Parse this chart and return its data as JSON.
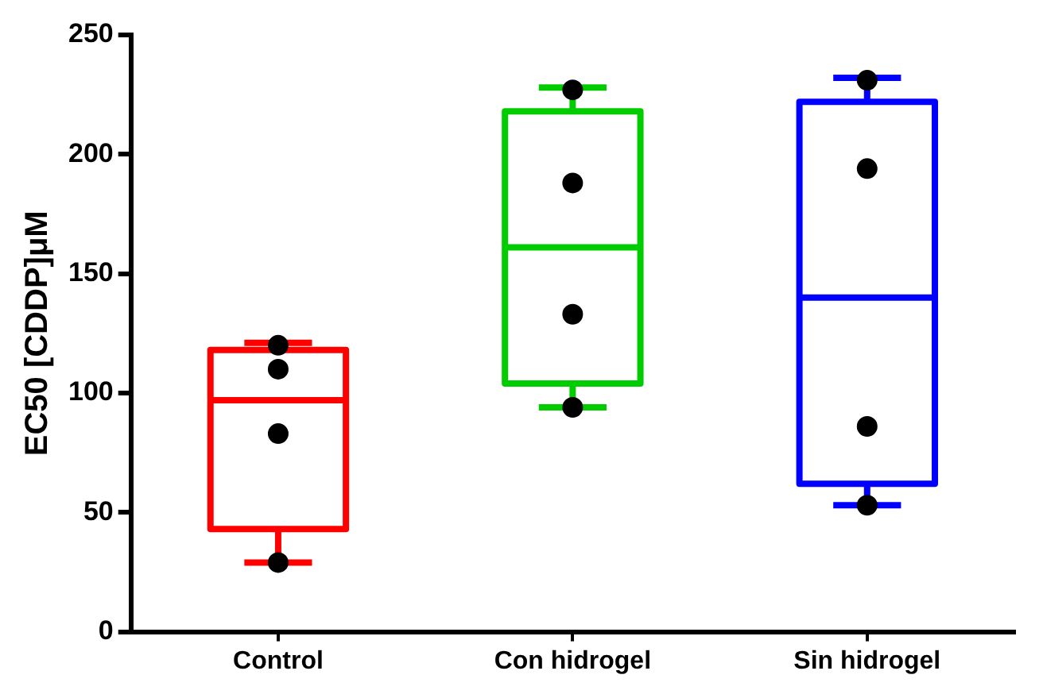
{
  "chart_data": {
    "type": "box",
    "ylabel": "EC50 [CDDP]μM",
    "categories": [
      "Control",
      "Con hidrogel",
      "Sin hidrogel"
    ],
    "colors": [
      "#ff0000",
      "#00cc00",
      "#0000ff"
    ],
    "boxes": [
      {
        "low": 29,
        "q1": 43,
        "median": 97,
        "q3": 118,
        "high": 121
      },
      {
        "low": 94,
        "q1": 104,
        "median": 161,
        "q3": 218,
        "high": 228
      },
      {
        "low": 53,
        "q1": 62,
        "median": 140,
        "q3": 222,
        "high": 232
      }
    ],
    "series": [
      {
        "type": "scatter",
        "color": "#000000",
        "x": [
          "Control",
          "Control",
          "Control",
          "Control",
          "Con hidrogel",
          "Con hidrogel",
          "Con hidrogel",
          "Con hidrogel",
          "Sin hidrogel",
          "Sin hidrogel",
          "Sin hidrogel",
          "Sin hidrogel"
        ],
        "values": [
          120,
          110,
          83,
          29,
          227,
          188,
          133,
          94,
          231,
          194,
          86,
          53
        ]
      }
    ],
    "marker": "circle",
    "ylim": [
      0,
      250
    ],
    "yticks": [
      0,
      50,
      100,
      150,
      200,
      250
    ],
    "grid": false,
    "legend": false
  }
}
